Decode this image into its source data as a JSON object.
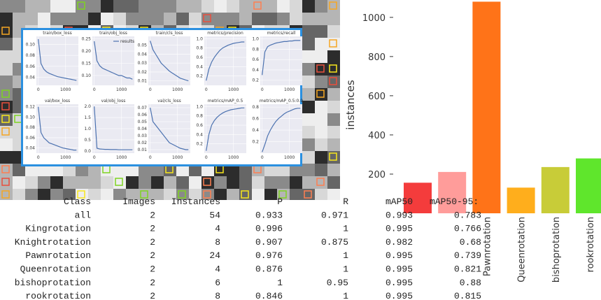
{
  "chart_data": [
    {
      "type": "bar",
      "ylabel": "instances",
      "categories": [
        null,
        null,
        "Pawnrotation",
        "Queenrotation",
        "bishoprotation",
        "rookrotation"
      ],
      "values": [
        156,
        211,
        1080,
        131,
        236,
        280
      ],
      "colors": [
        "#f43c3c",
        "#ff9c9a",
        "#ff7318",
        "#ffae1c",
        "#c8cc38",
        "#5fe62c"
      ],
      "ylim": [
        0,
        1110
      ],
      "yticks": [
        200,
        400,
        600,
        800,
        1000
      ]
    },
    {
      "type": "line",
      "title": "train/box_loss",
      "x": [
        0,
        100,
        200,
        300,
        400,
        500,
        600,
        700,
        800,
        900,
        1000,
        1100,
        1200,
        1300,
        1400
      ],
      "series": [
        {
          "color": "#4c72b0",
          "values": [
            0.11,
            0.065,
            0.055,
            0.05,
            0.047,
            0.045,
            0.043,
            0.041,
            0.04,
            0.039,
            0.038,
            0.037,
            0.036,
            0.035,
            0.034
          ]
        }
      ],
      "xlim": [
        -70,
        1470
      ],
      "xticks": [
        0,
        1000
      ],
      "ylim": [
        0.025,
        0.115
      ],
      "yticks": [
        {
          "value": 0.04,
          "label": "0.04"
        },
        {
          "value": 0.06,
          "label": "0.06"
        },
        {
          "value": 0.08,
          "label": "0.08"
        },
        {
          "value": 0.1,
          "label": "0.10"
        }
      ]
    },
    {
      "type": "line",
      "title": "train/obj_loss",
      "x": [
        0,
        100,
        200,
        300,
        400,
        500,
        600,
        700,
        800,
        900,
        1000,
        1100,
        1200,
        1300,
        1400
      ],
      "series": [
        {
          "name": "results",
          "color": "#4c72b0",
          "values": [
            0.24,
            0.16,
            0.14,
            0.13,
            0.125,
            0.12,
            0.115,
            0.11,
            0.105,
            0.1,
            0.1,
            0.095,
            0.09,
            0.09,
            0.085
          ]
        }
      ],
      "xlim": [
        -70,
        1470
      ],
      "xticks": [
        0,
        1000
      ],
      "ylim": [
        0.06,
        0.26
      ],
      "yticks": [
        {
          "value": 0.1,
          "label": "0.10"
        },
        0.15,
        {
          "value": 0.2,
          "label": "0.20"
        },
        0.25
      ]
    },
    {
      "type": "line",
      "title": "train/cls_loss",
      "x": [
        0,
        100,
        200,
        300,
        400,
        500,
        600,
        700,
        800,
        900,
        1000,
        1100,
        1200,
        1300,
        1400
      ],
      "series": [
        {
          "color": "#4c72b0",
          "values": [
            0.055,
            0.045,
            0.04,
            0.035,
            0.03,
            0.027,
            0.024,
            0.021,
            0.019,
            0.017,
            0.015,
            0.013,
            0.012,
            0.011,
            0.01
          ]
        }
      ],
      "xlim": [
        -70,
        1470
      ],
      "xticks": [
        0,
        1000
      ],
      "ylim": [
        0.005,
        0.06
      ],
      "yticks": [
        0.01,
        0.02,
        0.03,
        0.04,
        0.05
      ]
    },
    {
      "type": "line",
      "title": "metrics/precision",
      "x": [
        0,
        100,
        200,
        300,
        400,
        500,
        600,
        700,
        800,
        900,
        1000,
        1100,
        1200,
        1300,
        1400
      ],
      "series": [
        {
          "color": "#4c72b0",
          "values": [
            0.1,
            0.35,
            0.5,
            0.6,
            0.68,
            0.75,
            0.8,
            0.83,
            0.86,
            0.88,
            0.9,
            0.91,
            0.92,
            0.93,
            0.93
          ]
        }
      ],
      "xlim": [
        -70,
        1470
      ],
      "xticks": [
        0,
        1000
      ],
      "ylim": [
        0,
        1.05
      ],
      "yticks": [
        0.2,
        0.4,
        0.6,
        0.8,
        {
          "value": 1,
          "label": "1.0"
        }
      ]
    },
    {
      "type": "line",
      "title": "metrics/recall",
      "x": [
        0,
        100,
        200,
        300,
        400,
        500,
        600,
        700,
        800,
        900,
        1000,
        1100,
        1200,
        1300,
        1400
      ],
      "series": [
        {
          "color": "#4c72b0",
          "values": [
            0.3,
            0.75,
            0.85,
            0.88,
            0.9,
            0.92,
            0.93,
            0.94,
            0.95,
            0.95,
            0.96,
            0.96,
            0.97,
            0.97,
            0.97
          ]
        }
      ],
      "xlim": [
        -70,
        1470
      ],
      "xticks": [
        0,
        1000
      ],
      "ylim": [
        0.1,
        1.05
      ],
      "yticks": [
        0.2,
        0.4,
        0.6,
        0.8,
        {
          "value": 1,
          "label": "1.0"
        }
      ]
    },
    {
      "type": "line",
      "title": "val/box_loss",
      "x": [
        0,
        100,
        200,
        300,
        400,
        500,
        600,
        700,
        800,
        900,
        1000,
        1100,
        1200,
        1300,
        1400
      ],
      "series": [
        {
          "color": "#4c72b0",
          "values": [
            0.12,
            0.07,
            0.06,
            0.055,
            0.05,
            0.048,
            0.046,
            0.044,
            0.042,
            0.04,
            0.039,
            0.038,
            0.037,
            0.036,
            0.036
          ]
        }
      ],
      "xlim": [
        -70,
        1470
      ],
      "xticks": [
        0,
        1000
      ],
      "ylim": [
        0.03,
        0.125
      ],
      "yticks": [
        {
          "value": 0.04,
          "label": "0.04"
        },
        {
          "value": 0.06,
          "label": "0.06"
        },
        {
          "value": 0.08,
          "label": "0.08"
        },
        {
          "value": 0.1,
          "label": "0.10"
        },
        0.12
      ]
    },
    {
      "type": "line",
      "title": "val/obj_loss",
      "x": [
        0,
        100,
        200,
        300,
        400,
        500,
        600,
        700,
        800,
        900,
        1000,
        1100,
        1200,
        1300,
        1400
      ],
      "series": [
        {
          "color": "#4c72b0",
          "values": [
            2.0,
            0.12,
            0.09,
            0.08,
            0.07,
            0.07,
            0.06,
            0.06,
            0.06,
            0.05,
            0.05,
            0.05,
            0.05,
            0.05,
            0.05
          ]
        }
      ],
      "xlim": [
        -70,
        1470
      ],
      "xticks": [
        0,
        1000
      ],
      "ylim": [
        -0.1,
        2.1
      ],
      "yticks": [
        {
          "value": 0,
          "label": "0.0"
        },
        0.5,
        {
          "value": 1,
          "label": "1.0"
        },
        1.5,
        {
          "value": 2,
          "label": "2.0"
        }
      ]
    },
    {
      "type": "line",
      "title": "val/cls_loss",
      "x": [
        0,
        100,
        200,
        300,
        400,
        500,
        600,
        700,
        800,
        900,
        1000,
        1100,
        1200,
        1300,
        1400
      ],
      "series": [
        {
          "color": "#4c72b0",
          "values": [
            0.07,
            0.05,
            0.045,
            0.04,
            0.035,
            0.03,
            0.025,
            0.02,
            0.018,
            0.016,
            0.014,
            0.012,
            0.011,
            0.01,
            0.01
          ]
        }
      ],
      "xlim": [
        -70,
        1470
      ],
      "xticks": [
        0,
        1000
      ],
      "ylim": [
        0.005,
        0.075
      ],
      "yticks": [
        0.01,
        0.02,
        0.03,
        0.04,
        0.05,
        0.06,
        0.07
      ]
    },
    {
      "type": "line",
      "title": "metrics/mAP_0.5",
      "x": [
        0,
        100,
        200,
        300,
        400,
        500,
        600,
        700,
        800,
        900,
        1000,
        1100,
        1200,
        1300,
        1400
      ],
      "series": [
        {
          "color": "#4c72b0",
          "values": [
            0.05,
            0.4,
            0.6,
            0.7,
            0.77,
            0.82,
            0.86,
            0.89,
            0.91,
            0.93,
            0.94,
            0.95,
            0.96,
            0.97,
            0.97
          ]
        }
      ],
      "xlim": [
        -70,
        1470
      ],
      "xticks": [
        0,
        1000
      ],
      "ylim": [
        0,
        1.05
      ],
      "yticks": [
        0.2,
        0.4,
        0.6,
        0.8,
        {
          "value": 1,
          "label": "1.0"
        }
      ]
    },
    {
      "type": "line",
      "title": "metrics/mAP_0.5:0.9",
      "x": [
        0,
        100,
        200,
        300,
        400,
        500,
        600,
        700,
        800,
        900,
        1000,
        1100,
        1200,
        1300,
        1400
      ],
      "series": [
        {
          "color": "#4c72b0",
          "values": [
            0.02,
            0.15,
            0.3,
            0.4,
            0.48,
            0.55,
            0.6,
            0.64,
            0.68,
            0.71,
            0.73,
            0.75,
            0.77,
            0.78,
            0.78
          ]
        }
      ],
      "xlim": [
        -70,
        1470
      ],
      "xticks": [
        0,
        1000
      ],
      "ylim": [
        0,
        0.85
      ],
      "yticks": [
        0.2,
        0.4,
        0.6,
        0.8
      ]
    }
  ],
  "table": {
    "header": [
      "Class",
      "Images",
      "Instances",
      "P",
      "R",
      "mAP50",
      "mAP50-95:"
    ],
    "rows": [
      [
        "all",
        "2",
        "54",
        "0.933",
        "0.971",
        "0.993",
        "0.783"
      ],
      [
        "Kingrotation",
        "2",
        "4",
        "0.996",
        "1",
        "0.995",
        "0.766"
      ],
      [
        "Knightrotation",
        "2",
        "8",
        "0.907",
        "0.875",
        "0.982",
        "0.68"
      ],
      [
        "Pawnrotation",
        "2",
        "24",
        "0.976",
        "1",
        "0.995",
        "0.739"
      ],
      [
        "Queenrotation",
        "2",
        "4",
        "0.876",
        "1",
        "0.995",
        "0.821"
      ],
      [
        "bishoprotation",
        "2",
        "6",
        "1",
        "0.95",
        "0.995",
        "0.88"
      ],
      [
        "rookrotation",
        "2",
        "8",
        "0.846",
        "1",
        "0.995",
        "0.815"
      ]
    ]
  }
}
